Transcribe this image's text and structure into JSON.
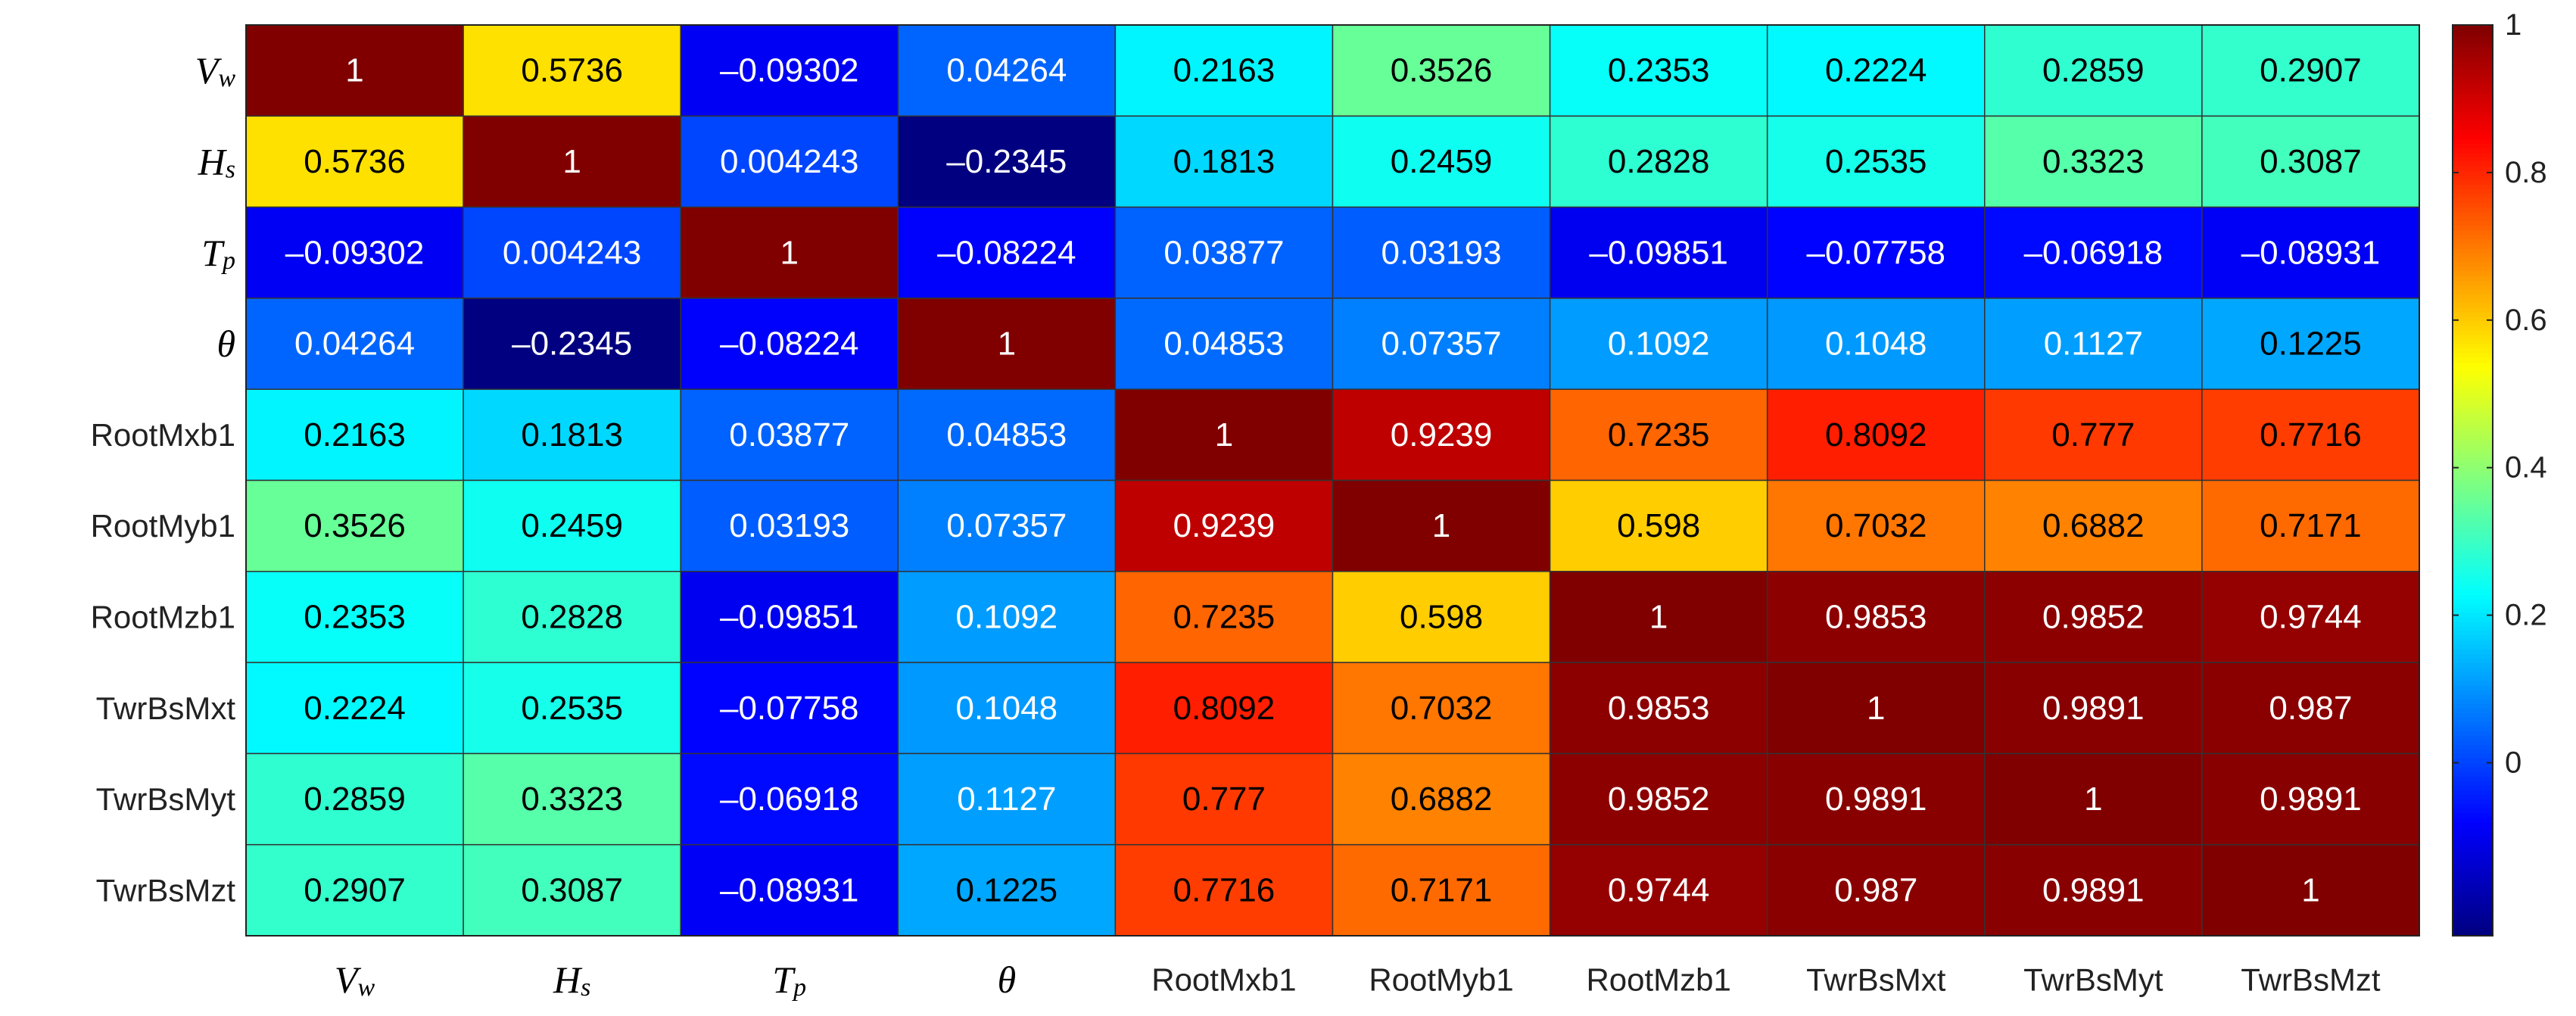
{
  "chart_data": {
    "type": "heatmap",
    "x_categories": [
      "Vw",
      "Hs",
      "Tp",
      "θ",
      "RootMxb1",
      "RootMyb1",
      "RootMzb1",
      "TwrBsMxt",
      "TwrBsMyt",
      "TwrBsMzt"
    ],
    "y_categories": [
      "Vw",
      "Hs",
      "Tp",
      "θ",
      "RootMxb1",
      "RootMyb1",
      "RootMzb1",
      "TwrBsMxt",
      "TwrBsMyt",
      "TwrBsMzt"
    ],
    "values": [
      [
        1,
        0.5736,
        -0.09302,
        0.04264,
        0.2163,
        0.3526,
        0.2353,
        0.2224,
        0.2859,
        0.2907
      ],
      [
        0.5736,
        1,
        0.004243,
        -0.2345,
        0.1813,
        0.2459,
        0.2828,
        0.2535,
        0.3323,
        0.3087
      ],
      [
        -0.09302,
        0.004243,
        1,
        -0.08224,
        0.03877,
        0.03193,
        -0.09851,
        -0.07758,
        -0.06918,
        -0.08931
      ],
      [
        0.04264,
        -0.2345,
        -0.08224,
        1,
        0.04853,
        0.07357,
        0.1092,
        0.1048,
        0.1127,
        0.1225
      ],
      [
        0.2163,
        0.1813,
        0.03877,
        0.04853,
        1,
        0.9239,
        0.7235,
        0.8092,
        0.777,
        0.7716
      ],
      [
        0.3526,
        0.2459,
        0.03193,
        0.07357,
        0.9239,
        1,
        0.598,
        0.7032,
        0.6882,
        0.7171
      ],
      [
        0.2353,
        0.2828,
        -0.09851,
        0.1092,
        0.7235,
        0.598,
        1,
        0.9853,
        0.9852,
        0.9744
      ],
      [
        0.2224,
        0.2535,
        -0.07758,
        0.1048,
        0.8092,
        0.7032,
        0.9853,
        1,
        0.9891,
        0.987
      ],
      [
        0.2859,
        0.3323,
        -0.06918,
        0.1127,
        0.777,
        0.6882,
        0.9852,
        0.9891,
        1,
        0.9891
      ],
      [
        0.2907,
        0.3087,
        -0.08931,
        0.1225,
        0.7716,
        0.7171,
        0.9744,
        0.987,
        0.9891,
        1
      ]
    ],
    "value_labels": [
      [
        "1",
        "0.5736",
        "–0.09302",
        "0.04264",
        "0.2163",
        "0.3526",
        "0.2353",
        "0.2224",
        "0.2859",
        "0.2907"
      ],
      [
        "0.5736",
        "1",
        "0.004243",
        "–0.2345",
        "0.1813",
        "0.2459",
        "0.2828",
        "0.2535",
        "0.3323",
        "0.3087"
      ],
      [
        "–0.09302",
        "0.004243",
        "1",
        "–0.08224",
        "0.03877",
        "0.03193",
        "–0.09851",
        "–0.07758",
        "–0.06918",
        "–0.08931"
      ],
      [
        "0.04264",
        "–0.2345",
        "–0.08224",
        "1",
        "0.04853",
        "0.07357",
        "0.1092",
        "0.1048",
        "0.1127",
        "0.1225"
      ],
      [
        "0.2163",
        "0.1813",
        "0.03877",
        "0.04853",
        "1",
        "0.9239",
        "0.7235",
        "0.8092",
        "0.777",
        "0.7716"
      ],
      [
        "0.3526",
        "0.2459",
        "0.03193",
        "0.07357",
        "0.9239",
        "1",
        "0.598",
        "0.7032",
        "0.6882",
        "0.7171"
      ],
      [
        "0.2353",
        "0.2828",
        "–0.09851",
        "0.1092",
        "0.7235",
        "0.598",
        "1",
        "0.9853",
        "0.9852",
        "0.9744"
      ],
      [
        "0.2224",
        "0.2535",
        "–0.07758",
        "0.1048",
        "0.8092",
        "0.7032",
        "0.9853",
        "1",
        "0.9891",
        "0.987"
      ],
      [
        "0.2859",
        "0.3323",
        "–0.06918",
        "0.1127",
        "0.777",
        "0.6882",
        "0.9852",
        "0.9891",
        "1",
        "0.9891"
      ],
      [
        "0.2907",
        "0.3087",
        "–0.08931",
        "0.1225",
        "0.7716",
        "0.7171",
        "0.9744",
        "0.987",
        "0.9891",
        "1"
      ]
    ],
    "colormap": "jet",
    "clim": [
      -0.2345,
      1
    ],
    "colorbar_ticks": [
      0,
      0.2,
      0.4,
      0.6,
      0.8,
      1
    ]
  }
}
